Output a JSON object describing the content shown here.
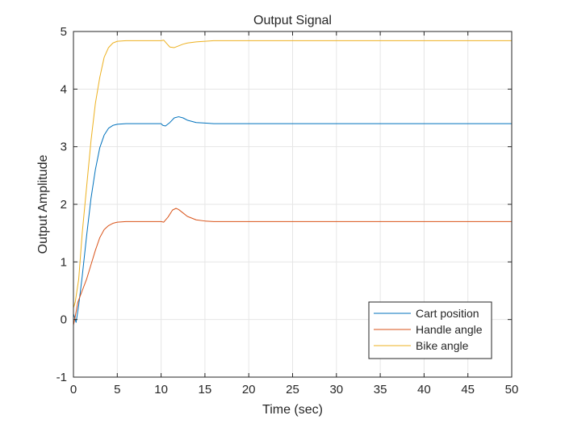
{
  "chart_data": {
    "type": "line",
    "title": "Output Signal",
    "xlabel": "Time (sec)",
    "ylabel": "Output Amplitude",
    "xlim": [
      0,
      50
    ],
    "ylim": [
      -1,
      5
    ],
    "xticks": [
      0,
      5,
      10,
      15,
      20,
      25,
      30,
      35,
      40,
      45,
      50
    ],
    "yticks": [
      -1,
      0,
      1,
      2,
      3,
      4,
      5
    ],
    "grid": true,
    "legend_position": "bottom-right",
    "series": [
      {
        "name": "Cart position",
        "color": "#0072bd",
        "x": [
          0,
          0.3,
          0.6,
          1,
          1.5,
          2,
          2.5,
          3,
          3.5,
          4,
          4.5,
          5,
          6,
          7,
          8,
          9,
          10,
          10.2,
          10.5,
          11,
          11.5,
          12,
          12.5,
          13,
          14,
          15,
          16,
          17,
          20,
          25,
          30,
          35,
          40,
          45,
          50
        ],
        "y": [
          0.1,
          -0.05,
          0.25,
          0.75,
          1.45,
          2.1,
          2.6,
          2.98,
          3.2,
          3.32,
          3.37,
          3.39,
          3.4,
          3.4,
          3.4,
          3.4,
          3.4,
          3.37,
          3.36,
          3.42,
          3.5,
          3.52,
          3.5,
          3.46,
          3.42,
          3.41,
          3.4,
          3.4,
          3.4,
          3.4,
          3.4,
          3.4,
          3.4,
          3.4,
          3.4
        ]
      },
      {
        "name": "Handle angle",
        "color": "#d95319",
        "x": [
          0,
          0.2,
          0.5,
          1,
          1.5,
          2,
          2.5,
          3,
          3.5,
          4,
          4.5,
          5,
          6,
          7,
          8,
          9,
          10,
          10.3,
          10.8,
          11.3,
          11.7,
          12,
          12.5,
          13,
          14,
          15,
          16,
          17,
          20,
          25,
          30,
          35,
          40,
          45,
          50
        ],
        "y": [
          -0.1,
          0.05,
          0.3,
          0.5,
          0.7,
          0.95,
          1.2,
          1.42,
          1.56,
          1.63,
          1.67,
          1.69,
          1.7,
          1.7,
          1.7,
          1.7,
          1.7,
          1.69,
          1.78,
          1.9,
          1.93,
          1.91,
          1.85,
          1.79,
          1.73,
          1.71,
          1.7,
          1.7,
          1.7,
          1.7,
          1.7,
          1.7,
          1.7,
          1.7,
          1.7
        ]
      },
      {
        "name": "Bike angle",
        "color": "#edb120",
        "x": [
          0,
          0.2,
          0.6,
          1,
          1.5,
          2,
          2.5,
          3,
          3.5,
          4,
          4.5,
          5,
          6,
          7,
          8,
          9,
          10,
          10.3,
          10.7,
          11,
          11.5,
          12,
          12.5,
          13,
          14,
          15,
          16,
          17,
          20,
          25,
          30,
          35,
          40,
          45,
          50
        ],
        "y": [
          0.2,
          0.3,
          0.7,
          1.5,
          2.3,
          3.1,
          3.75,
          4.2,
          4.55,
          4.72,
          4.8,
          4.83,
          4.84,
          4.84,
          4.84,
          4.84,
          4.84,
          4.85,
          4.78,
          4.73,
          4.72,
          4.75,
          4.78,
          4.8,
          4.82,
          4.83,
          4.84,
          4.84,
          4.84,
          4.84,
          4.84,
          4.84,
          4.84,
          4.84,
          4.84
        ]
      }
    ]
  }
}
